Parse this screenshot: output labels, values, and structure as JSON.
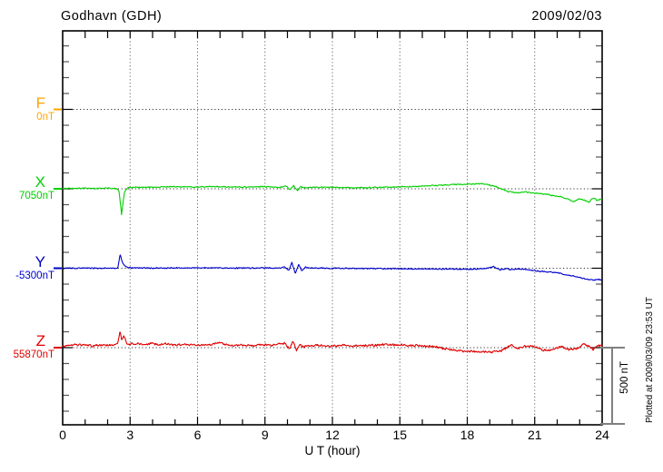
{
  "chart_data": {
    "type": "line",
    "title": "Godhavn (GDH)",
    "date_label": "2009/02/03",
    "xlabel": "U T (hour)",
    "x_range": [
      0,
      24
    ],
    "x_ticks": [
      0,
      3,
      6,
      9,
      12,
      15,
      18,
      21,
      24
    ],
    "x_minor_tick_interval_hours": 1,
    "y_tick_interval_nT": 100,
    "y_division_nT": 500,
    "grid": "dotted, vertical every 3 hours, horizontal at each component baseline",
    "scale_bar": {
      "label": "500 nT",
      "span_nT": 500
    },
    "plotted_at_label": "Plotted at 2009/03/09 23:53 UT",
    "series": [
      {
        "id": "F",
        "label": "F",
        "ref_label": "0nT",
        "ref_nT": 0,
        "color": "#FFA500",
        "has_trace": false,
        "noise_nT": 0,
        "keypoints_hour_offset_nT": []
      },
      {
        "id": "X",
        "label": "X",
        "ref_label": "7050nT",
        "ref_nT": 7050,
        "color": "#00CF00",
        "has_trace": true,
        "noise_nT": 4.5,
        "keypoints_hour_offset_nT": [
          [
            0,
            3
          ],
          [
            0.5,
            2
          ],
          [
            1,
            4
          ],
          [
            1.5,
            2
          ],
          [
            2,
            3
          ],
          [
            2.4,
            2
          ],
          [
            2.5,
            -12
          ],
          [
            2.62,
            -160
          ],
          [
            2.75,
            -22
          ],
          [
            2.88,
            6
          ],
          [
            3.1,
            9
          ],
          [
            4,
            11
          ],
          [
            5,
            13
          ],
          [
            6,
            11
          ],
          [
            7,
            13
          ],
          [
            8,
            11
          ],
          [
            9,
            13
          ],
          [
            9.6,
            9
          ],
          [
            9.95,
            17
          ],
          [
            10.1,
            -5
          ],
          [
            10.28,
            19
          ],
          [
            10.45,
            -11
          ],
          [
            10.6,
            13
          ],
          [
            10.8,
            5
          ],
          [
            11,
            9
          ],
          [
            12,
            9
          ],
          [
            13,
            7
          ],
          [
            14,
            9
          ],
          [
            15,
            12
          ],
          [
            16,
            17
          ],
          [
            17,
            23
          ],
          [
            18,
            29
          ],
          [
            18.7,
            31
          ],
          [
            19.2,
            17
          ],
          [
            19.5,
            0
          ],
          [
            19.8,
            -17
          ],
          [
            20.2,
            -26
          ],
          [
            20.6,
            -20
          ],
          [
            21,
            -28
          ],
          [
            21.5,
            -34
          ],
          [
            22,
            -46
          ],
          [
            22.4,
            -60
          ],
          [
            22.75,
            -80
          ],
          [
            23,
            -63
          ],
          [
            23.2,
            -71
          ],
          [
            23.4,
            -85
          ],
          [
            23.6,
            -57
          ],
          [
            23.8,
            -74
          ],
          [
            24,
            -63
          ]
        ]
      },
      {
        "id": "Y",
        "label": "Y",
        "ref_label": "-5300nT",
        "ref_nT": -5300,
        "color": "#0000CC",
        "has_trace": true,
        "noise_nT": 4.5,
        "keypoints_hour_offset_nT": [
          [
            0,
            0
          ],
          [
            1,
            1
          ],
          [
            2,
            0
          ],
          [
            2.45,
            1
          ],
          [
            2.55,
            85
          ],
          [
            2.67,
            34
          ],
          [
            2.8,
            10
          ],
          [
            3,
            2
          ],
          [
            4,
            1
          ],
          [
            5,
            2
          ],
          [
            6,
            1
          ],
          [
            7,
            2
          ],
          [
            8,
            1
          ],
          [
            9,
            2
          ],
          [
            9.6,
            0
          ],
          [
            9.9,
            8
          ],
          [
            10.05,
            -17
          ],
          [
            10.2,
            34
          ],
          [
            10.35,
            -34
          ],
          [
            10.5,
            23
          ],
          [
            10.65,
            -17
          ],
          [
            10.8,
            6
          ],
          [
            11,
            1
          ],
          [
            12,
            0
          ],
          [
            13,
            -1
          ],
          [
            14,
            -2
          ],
          [
            15,
            -3
          ],
          [
            16,
            -4
          ],
          [
            17,
            -5
          ],
          [
            18,
            -6
          ],
          [
            18.8,
            -3
          ],
          [
            19.2,
            10
          ],
          [
            19.45,
            -10
          ],
          [
            19.7,
            -3
          ],
          [
            20,
            -10
          ],
          [
            20.3,
            -4
          ],
          [
            20.6,
            -9
          ],
          [
            21,
            -15
          ],
          [
            21.5,
            -22
          ],
          [
            22,
            -28
          ],
          [
            22.5,
            -44
          ],
          [
            23,
            -57
          ],
          [
            23.3,
            -68
          ],
          [
            23.6,
            -74
          ],
          [
            23.8,
            -72
          ],
          [
            24,
            -74
          ]
        ]
      },
      {
        "id": "Z",
        "label": "Z",
        "ref_label": "55870nT",
        "ref_nT": 55870,
        "color": "#E00000",
        "has_trace": true,
        "noise_nT": 8,
        "keypoints_hour_offset_nT": [
          [
            0,
            11
          ],
          [
            0.5,
            17
          ],
          [
            1,
            20
          ],
          [
            1.3,
            11
          ],
          [
            1.7,
            17
          ],
          [
            2,
            14
          ],
          [
            2.3,
            17
          ],
          [
            2.45,
            28
          ],
          [
            2.55,
            108
          ],
          [
            2.63,
            45
          ],
          [
            2.73,
            74
          ],
          [
            2.85,
            26
          ],
          [
            3,
            22
          ],
          [
            3.3,
            28
          ],
          [
            3.6,
            17
          ],
          [
            4,
            26
          ],
          [
            4.3,
            17
          ],
          [
            4.6,
            23
          ],
          [
            5,
            17
          ],
          [
            5.5,
            20
          ],
          [
            6,
            14
          ],
          [
            6.5,
            17
          ],
          [
            7,
            34
          ],
          [
            7.3,
            17
          ],
          [
            7.6,
            14
          ],
          [
            8,
            17
          ],
          [
            8.5,
            14
          ],
          [
            9,
            17
          ],
          [
            9.3,
            14
          ],
          [
            9.6,
            23
          ],
          [
            9.9,
            28
          ],
          [
            10.1,
            -11
          ],
          [
            10.25,
            45
          ],
          [
            10.4,
            -17
          ],
          [
            10.55,
            17
          ],
          [
            10.7,
            6
          ],
          [
            11,
            11
          ],
          [
            11.5,
            14
          ],
          [
            12,
            11
          ],
          [
            12.5,
            14
          ],
          [
            13,
            11
          ],
          [
            13.5,
            14
          ],
          [
            14,
            17
          ],
          [
            14.5,
            20
          ],
          [
            15,
            17
          ],
          [
            15.5,
            14
          ],
          [
            16,
            11
          ],
          [
            16.5,
            6
          ],
          [
            17,
            -6
          ],
          [
            17.5,
            -17
          ],
          [
            18,
            -23
          ],
          [
            18.5,
            -26
          ],
          [
            19,
            -28
          ],
          [
            19.4,
            -23
          ],
          [
            19.7,
            -6
          ],
          [
            20,
            17
          ],
          [
            20.2,
            -6
          ],
          [
            20.5,
            6
          ],
          [
            20.8,
            11
          ],
          [
            21,
            6
          ],
          [
            21.3,
            -11
          ],
          [
            21.6,
            -20
          ],
          [
            21.9,
            -6
          ],
          [
            22.2,
            6
          ],
          [
            22.5,
            -11
          ],
          [
            22.8,
            -6
          ],
          [
            23,
            0
          ],
          [
            23.2,
            23
          ],
          [
            23.4,
            6
          ],
          [
            23.6,
            -11
          ],
          [
            23.8,
            11
          ],
          [
            24,
            14
          ]
        ]
      }
    ]
  }
}
